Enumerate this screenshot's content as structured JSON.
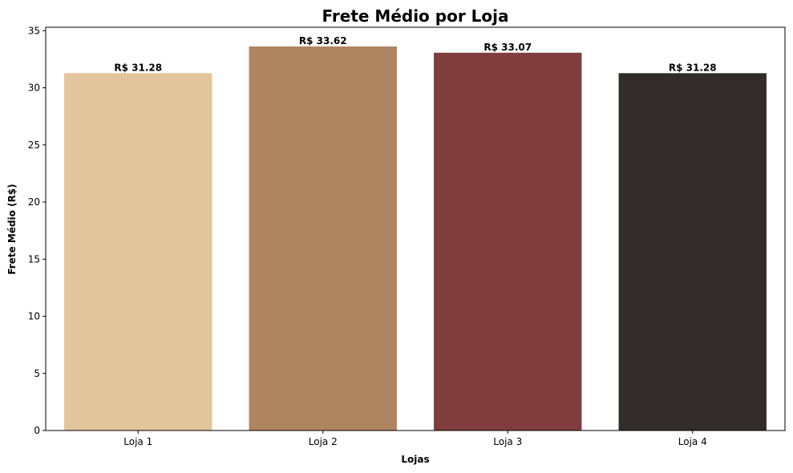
{
  "chart_data": {
    "type": "bar",
    "title": "Frete Médio por Loja",
    "xlabel": "Lojas",
    "ylabel": "Frete Médio (R$)",
    "categories": [
      "Loja 1",
      "Loja 2",
      "Loja 3",
      "Loja 4"
    ],
    "values": [
      31.28,
      33.62,
      33.07,
      31.28
    ],
    "data_labels": [
      "R$ 31.28",
      "R$ 33.62",
      "R$ 33.07",
      "R$ 31.28"
    ],
    "colors": [
      "#E3C59C",
      "#AF8461",
      "#7F3D3D",
      "#322D2A"
    ],
    "ylim": [
      0,
      35.3
    ],
    "yticks": [
      0,
      5,
      10,
      15,
      20,
      25,
      30,
      35
    ],
    "grid": false,
    "legend": "none"
  }
}
